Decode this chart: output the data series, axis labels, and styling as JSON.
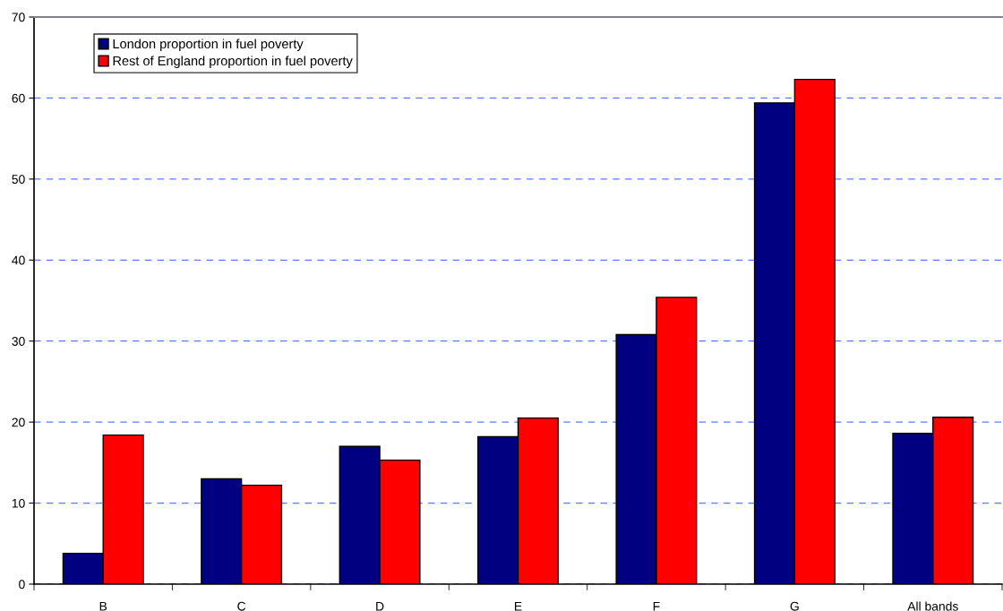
{
  "chart_data": {
    "type": "bar",
    "categories": [
      "B",
      "C",
      "D",
      "E",
      "F",
      "G",
      "All bands"
    ],
    "series": [
      {
        "name": "London proportion in fuel poverty",
        "color": "#000080",
        "values": [
          3.8,
          13.0,
          17.0,
          18.2,
          30.8,
          59.4,
          18.6
        ]
      },
      {
        "name": "Rest of England proportion in fuel poverty",
        "color": "#ff0000",
        "values": [
          18.4,
          12.2,
          15.3,
          20.5,
          35.4,
          62.3,
          20.6
        ]
      }
    ],
    "ylim": [
      0,
      70
    ],
    "yticks": [
      0,
      10,
      20,
      30,
      40,
      50,
      60,
      70
    ],
    "grid": "y",
    "legend": "top left"
  }
}
